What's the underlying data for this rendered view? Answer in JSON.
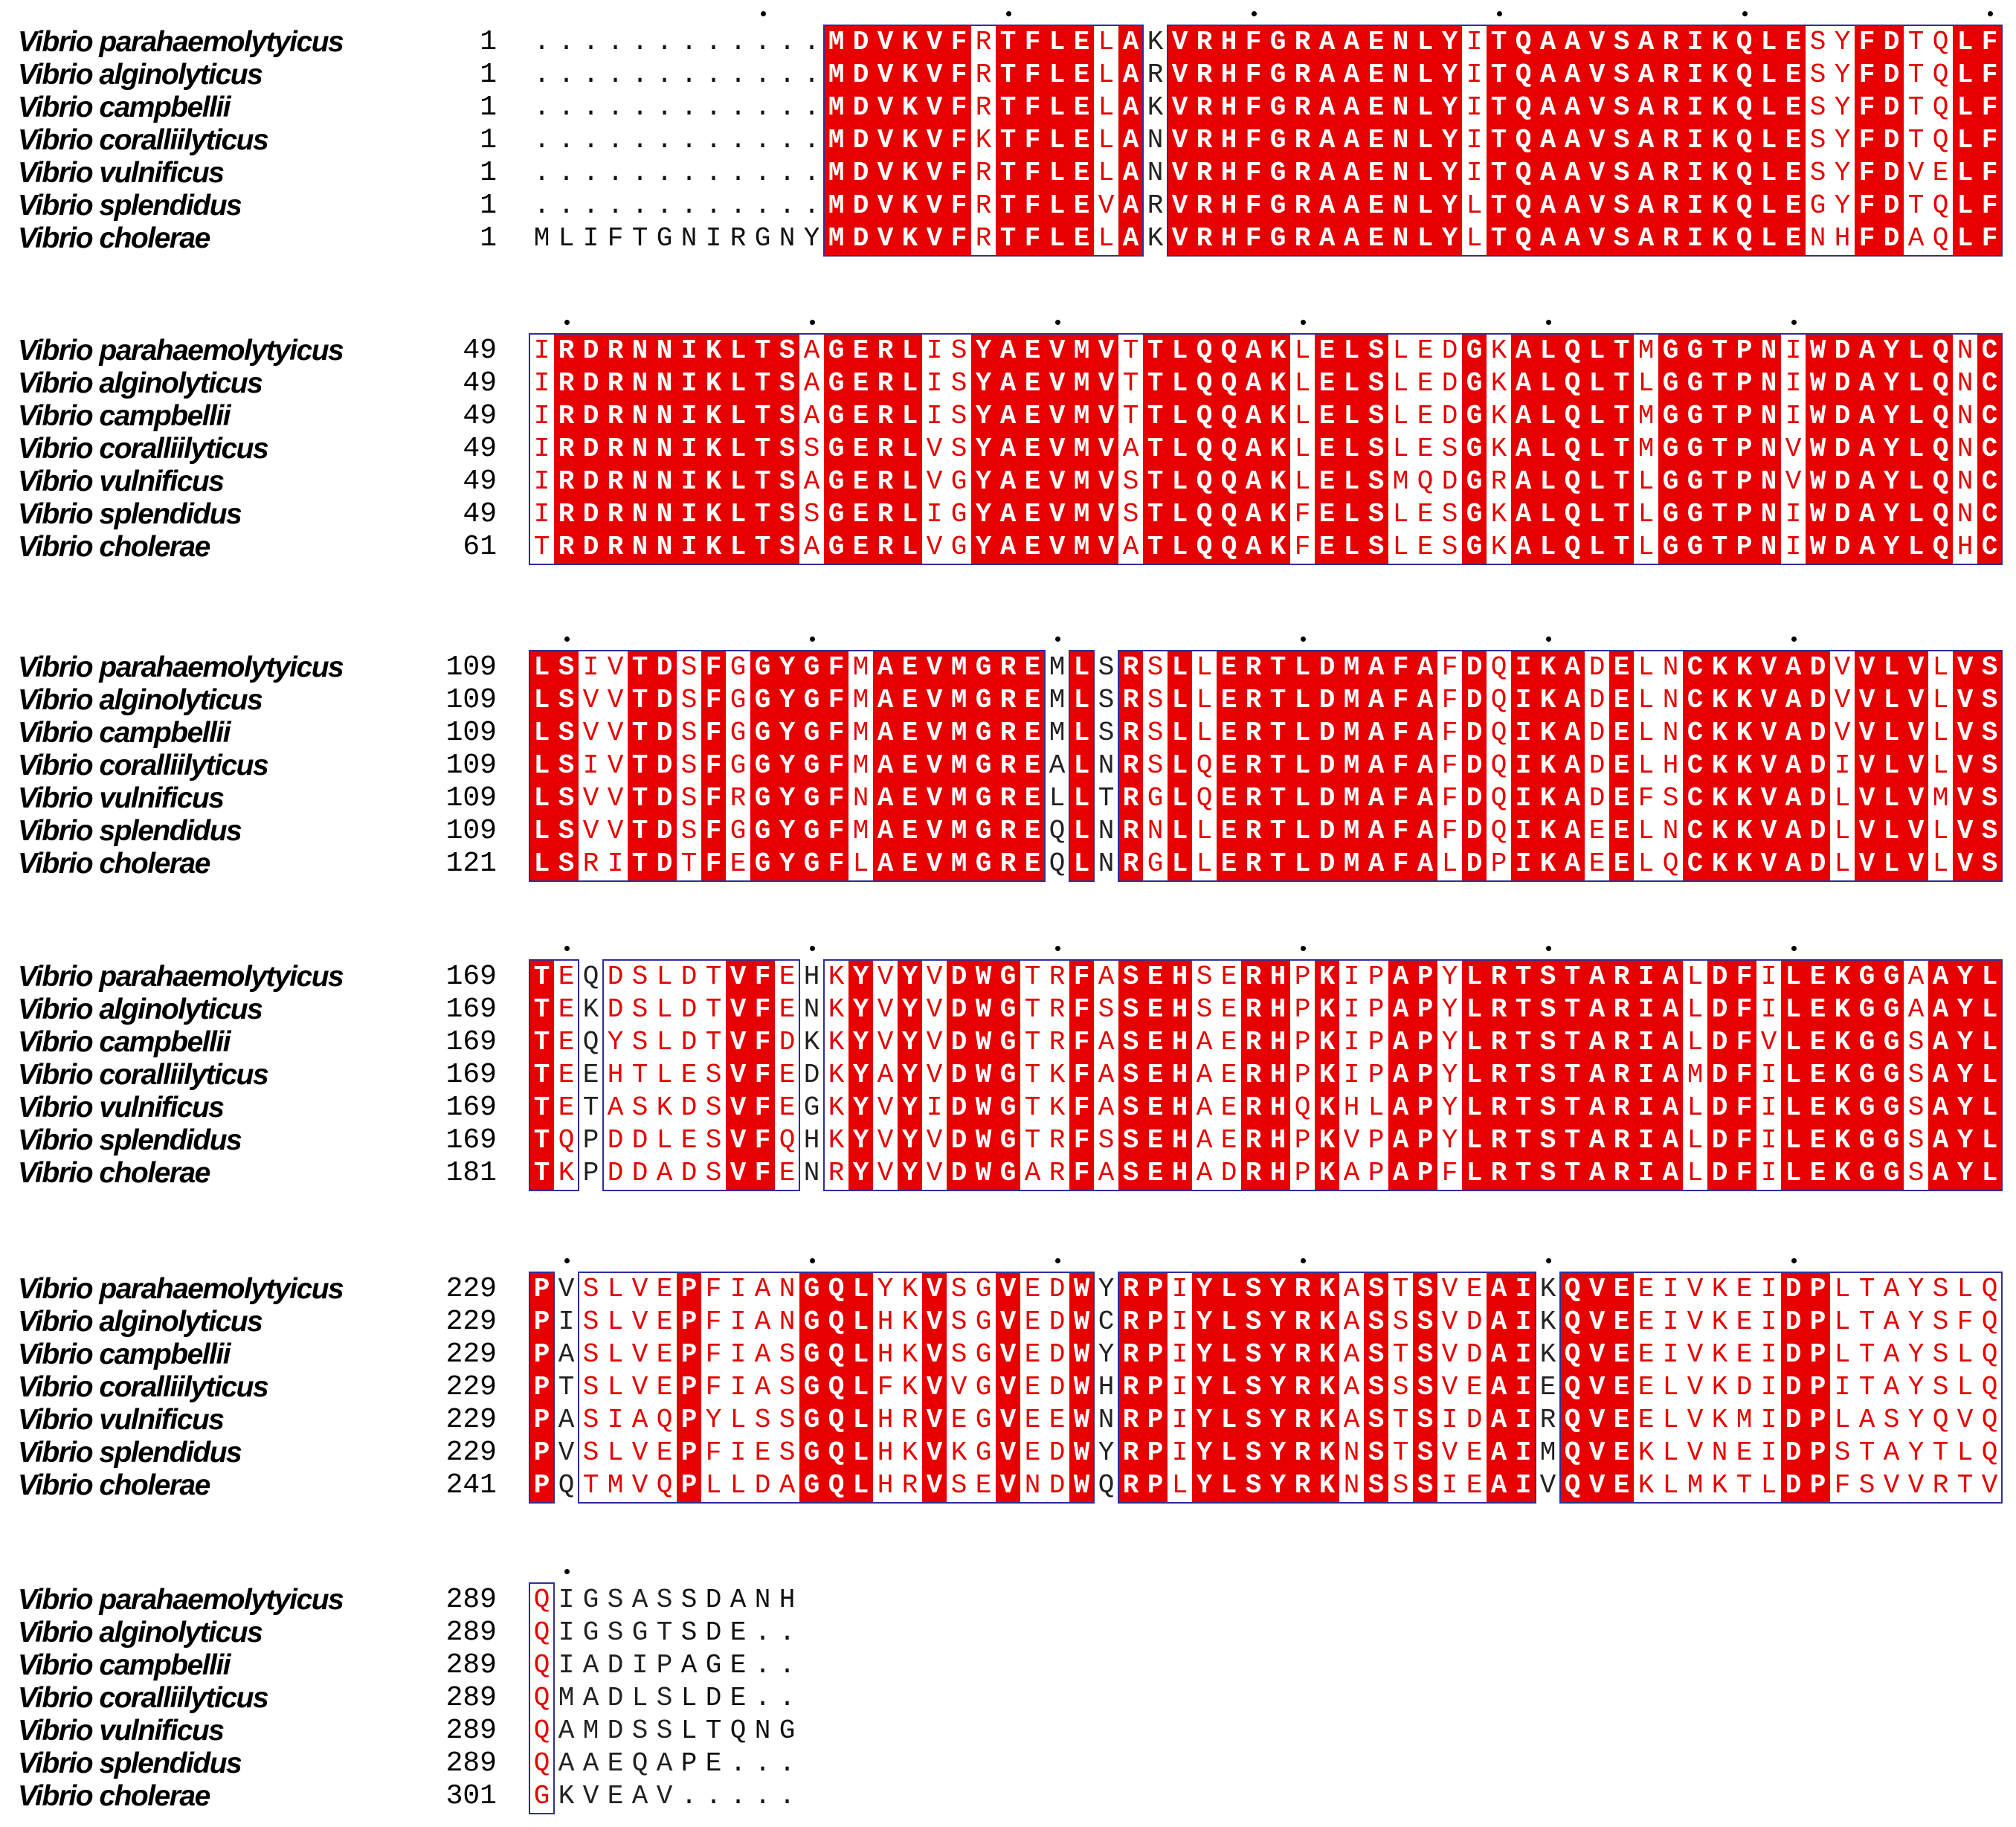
{
  "species": [
    "Vibrio parahaemolytyicus",
    "Vibrio alginolyticus",
    "Vibrio campbellii",
    "Vibrio coralliilyticus",
    "Vibrio vulnificus",
    "Vibrio splendidus",
    "Vibrio cholerae"
  ],
  "blocks": [
    {
      "starts": [
        "1",
        "1",
        "1",
        "1",
        "1",
        "1",
        "1"
      ],
      "pad": 12,
      "rows": [
        "............MDVKVFRTFLELAKVRHFGRAAENLYITQAAVSARIKQLESYFDTQLF",
        "............MDVKVFRTFLELARVRHFGRAAENLYITQAAVSARIKQLESYFDTQLF",
        "............MDVKVFRTFLELAKVRHFGRAAENLYITQAAVSARIKQLESYFDTQLF",
        "............MDVKVFKTFLELANVRHFGRAAENLYITQAAVSARIKQLESYFDTQLF",
        "............MDVKVFRTFLELANVRHFGRAAENLYITQAAVSARIKQLESYFDVELF",
        "............MDVKVFRTFLEVARVRHFGRAAENLYLTQAAVSARIKQLEGYFDTQLF",
        "MLIFTGNIRGNYMDVKVFRTFLELAKVRHFGRAAENLYLTQAAVSARIKQLENHFDAQLF"
      ]
    },
    {
      "starts": [
        "49",
        "49",
        "49",
        "49",
        "49",
        "49",
        "61"
      ],
      "pad": 0,
      "rows": [
        "IRDRNNIKLTSAGERLISYAEVMVTTLQQAKLELSLEDGKALQLTMGGTPNIWDAYLQNC",
        "IRDRNNIKLTSAGERLISYAEVMVTTLQQAKLELSLEDGKALQLTLGGTPNIWDAYLQNC",
        "IRDRNNIKLTSAGERLISYAEVMVTTLQQAKLELSLEDGKALQLTMGGTPNIWDAYLQNC",
        "IRDRNNIKLTSSGERLVSYAEVMVATLQQAKLELSLESGKALQLTMGGTPNVWDAYLQNC",
        "IRDRNNIKLTSAGERLVGYAEVMVSTLQQAKLELSMQDGRALQLTLGGTPNVWDAYLQNC",
        "IRDRNNIKLTSSGERLIGYAEVMVSTLQQAKFELSLESGKALQLTLGGTPNIWDAYLQNC",
        "TRDRNNIKLTSAGERLVGYAEVMVATLQQAKFELSLESGKALQLTLGGTPNIWDAYLQHC"
      ]
    },
    {
      "starts": [
        "109",
        "109",
        "109",
        "109",
        "109",
        "109",
        "121"
      ],
      "pad": 0,
      "rows": [
        "LSIVTDSFGGYGFMAEVMGREMLSRSLLERTLDMAFAFDQIKADELNCKKVADVVLVLVS",
        "LSVVTDSFGGYGFMAEVMGREMLSRSLLERTLDMAFAFDQIKADELNCKKVADVVLVLVS",
        "LSVVTDSFGGYGFMAEVMGREMLSRSLLERTLDMAFAFDQIKADELNCKKVADVVLVLVS",
        "LSIVTDSFGGYGFMAEVMGREALNRSLQERTLDMAFAFDQIKADELHCKKVADIVLVLVS",
        "LSVVTDSFRGYGFNAEVMGRELLTRGLQERTLDMAFAFDQIKADEFSCKKVADLVLVMVS",
        "LSVVTDSFGGYGFMAEVMGREQLNRNLLERTLDMAFAFDQIKAEELNCKKVADLVLVLVS",
        "LSRITDTFEGYGFLAEVMGREQLNRGLLERTLDMAFALDPIKAEELQCKKVADLVLVLVS"
      ]
    },
    {
      "starts": [
        "169",
        "169",
        "169",
        "169",
        "169",
        "169",
        "181"
      ],
      "pad": 0,
      "rows": [
        "TEQDSLDTVFEHKYVYVDWGTRFASEHSERHPKIPAPYLRTSTARIALDFILEKGGAAYL",
        "TEKDSLDTVFENKYVYVDWGTRFSSEHSERHPKIPAPYLRTSTARIALDFILEKGGAAYL",
        "TEQYSLDTVFDKKYVYVDWGTRFASEHAERHPKIPAPYLRTSTARIALDFVLEKGGSAYL",
        "TEEHTLESVFEDKYAYVDWGTKFASEHAERHPKIPAPYLRTSTARIAMDFILEKGGSAYL",
        "TETASKDSVFEGKYVYIDWGTKFASEHAERHQKHLAPYLRTSTARIALDFILEKGGSAYL",
        "TQPDDLESVFQHKYVYVDWGTRFSSEHAERHPKVPAPYLRTSTARIALDFILEKGGSAYL",
        "TKPDDADSVFENRYVYVDWGARFASEHADRHPKAPAPFLRTSTARIALDFILEKGGSAYL"
      ]
    },
    {
      "starts": [
        "229",
        "229",
        "229",
        "229",
        "229",
        "229",
        "241"
      ],
      "pad": 0,
      "rows": [
        "PVSLVEPFIANGQLYKVSGVEDWYRPIYLSYRKASTSVEAIKQVEEIVKEIDPLTAYSLQ",
        "PISLVEPFIANGQLHKVSGVEDWCRPIYLSYRKASSSVDAIKQVEEIVKEIDPLTAYSFQ",
        "PASLVEPFIASGQLHKVSGVEDWYRPIYLSYRKASTSVDAIKQVEEIVKEIDPLTAYSLQ",
        "PTSLVEPFIASGQLFKVVGVEDWHRPIYLSYRKASSSVEAIEQVEELVKDIDPITAYSLQ",
        "PASIAQPYLSSGQLHRVEGVEEWNRPIYLSYRKASTSIDAIRQVEELVKMIDPLASYQVQ",
        "PVSLVEPFIESGQLHKVKGVEDWYRPIYLSYRKNSTSVEAIMQVEKLVNEIDPSTAYTLQ",
        "PQTMVQPLLDAGQLHRVSEVNDWQRPLYLSYRKNSSSIEAIVQVEKLMKTLDPFSVVRTV"
      ]
    },
    {
      "starts": [
        "289",
        "289",
        "289",
        "289",
        "289",
        "289",
        "301"
      ],
      "pad": 0,
      "rows": [
        "QIGSASSDANH",
        "QIGSGTSDE..",
        "QIADIPAGE..",
        "QMADLSLDE..",
        "QAMDSSLTQNG",
        "QAAEQAPE...",
        "GKVEAV....."
      ]
    }
  ]
}
